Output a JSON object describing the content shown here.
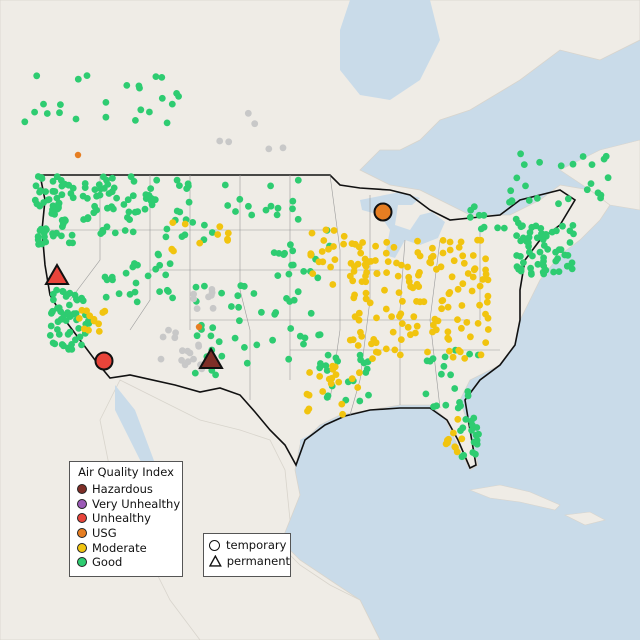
{
  "legend": {
    "title": "Air Quality Index",
    "categories": [
      {
        "label": "Hazardous",
        "color": "#7e2e27"
      },
      {
        "label": "Very Unhealthy",
        "color": "#9b59b6"
      },
      {
        "label": "Unhealthy",
        "color": "#e8443a"
      },
      {
        "label": "USG",
        "color": "#e67e22"
      },
      {
        "label": "Moderate",
        "color": "#f1c40f"
      },
      {
        "label": "Good",
        "color": "#2ecc71"
      }
    ]
  },
  "type_legend": {
    "temporary": "temporary",
    "permanent": "permanent"
  },
  "colors": {
    "water": "#c9dbe9",
    "land": "#efece6",
    "no_data": "#c8c8c8"
  },
  "monitor_types": [
    "temporary",
    "permanent"
  ]
}
